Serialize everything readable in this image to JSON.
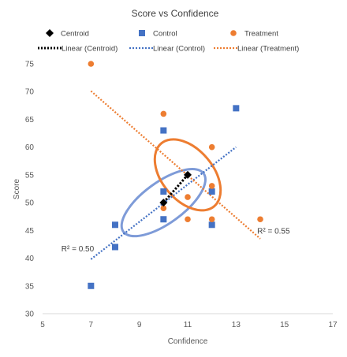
{
  "chart_data": {
    "type": "scatter",
    "title": "Score vs Confidence",
    "xlabel": "Confidence",
    "ylabel": "Score",
    "xlim": [
      5,
      17
    ],
    "ylim": [
      30,
      75
    ],
    "xticks": [
      5,
      7,
      9,
      11,
      13,
      15,
      17
    ],
    "yticks": [
      30,
      35,
      40,
      45,
      50,
      55,
      60,
      65,
      70,
      75
    ],
    "grid": false,
    "legend_position": "top",
    "series": [
      {
        "name": "Centroid",
        "marker": "diamond",
        "color": "#000000",
        "points": [
          [
            10,
            50
          ],
          [
            11,
            55
          ]
        ]
      },
      {
        "name": "Control",
        "marker": "square",
        "color": "#4472C4",
        "points": [
          [
            7,
            35
          ],
          [
            8,
            42
          ],
          [
            8,
            46
          ],
          [
            10,
            47
          ],
          [
            10,
            52
          ],
          [
            10,
            63
          ],
          [
            12,
            46
          ],
          [
            12,
            52
          ],
          [
            13,
            67
          ]
        ]
      },
      {
        "name": "Treatment",
        "marker": "circle",
        "color": "#ED7D31",
        "points": [
          [
            7,
            75
          ],
          [
            10,
            49
          ],
          [
            10,
            66
          ],
          [
            11,
            47
          ],
          [
            11,
            51
          ],
          [
            12,
            47
          ],
          [
            12,
            53
          ],
          [
            12,
            60
          ],
          [
            14,
            47
          ]
        ]
      }
    ],
    "trendlines": [
      {
        "name": "Linear (Centroid)",
        "color": "#000000",
        "from": [
          10,
          50
        ],
        "to": [
          11,
          55
        ]
      },
      {
        "name": "Linear (Control)",
        "color": "#4472C4",
        "from": [
          7,
          39.8
        ],
        "to": [
          13,
          60
        ]
      },
      {
        "name": "Linear (Treatment)",
        "color": "#ED7D31",
        "from": [
          7,
          70.1
        ],
        "to": [
          14,
          43.5
        ]
      }
    ],
    "ellipses": [
      {
        "series": "Control",
        "color": "#7E9BD8",
        "center": [
          10.0,
          50.0
        ],
        "rx_data": 2.05,
        "ry_data": 3.7,
        "angle_deg": -36
      },
      {
        "series": "Treatment",
        "color": "#ED7D31",
        "center": [
          11.0,
          55.0
        ],
        "rx_data": 1.7,
        "ry_data": 4.6,
        "angle_deg": 50
      }
    ],
    "annotations": [
      {
        "text": "R² = 0.50",
        "series": "Control"
      },
      {
        "text": "R² = 0.55",
        "series": "Treatment"
      }
    ]
  }
}
